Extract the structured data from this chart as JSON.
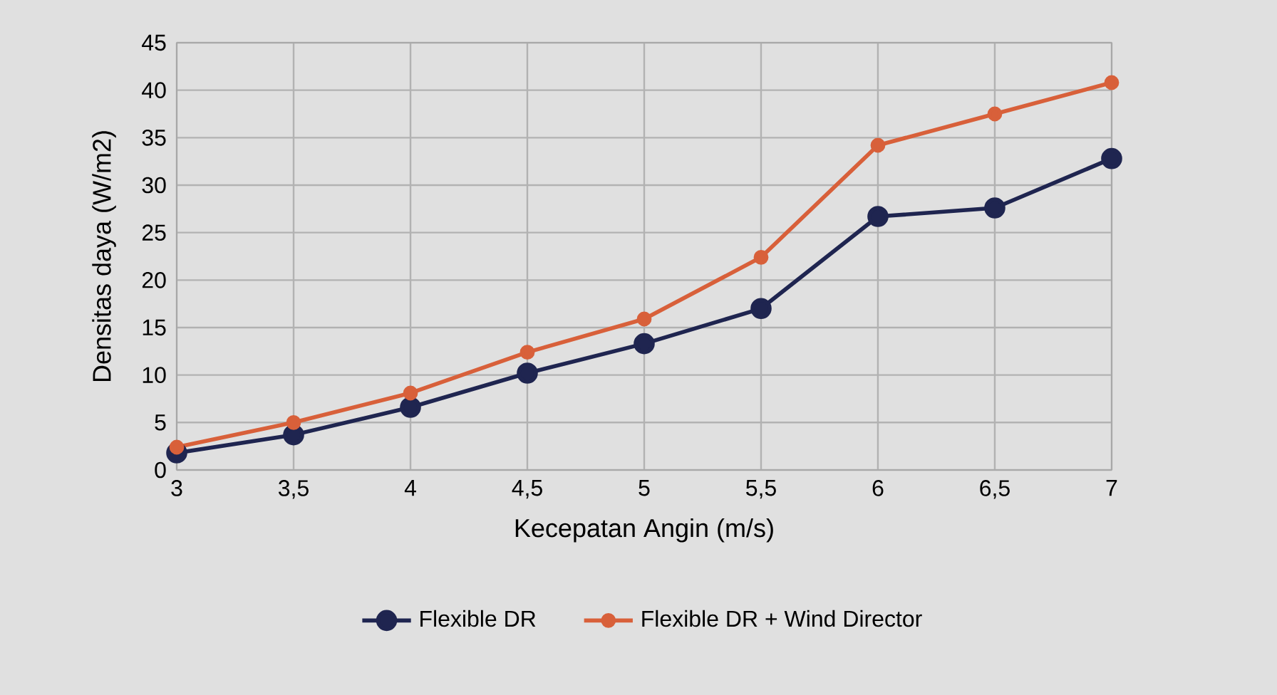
{
  "chart_data": {
    "type": "line",
    "xlabel": "Kecepatan Angin (m/s)",
    "ylabel": "Densitas daya (W/m2)",
    "x": [
      3,
      3.5,
      4,
      4.5,
      5,
      5.5,
      6,
      6.5,
      7
    ],
    "series": [
      {
        "name": "Flexible DR",
        "color": "#1f2550",
        "values": [
          1.8,
          3.7,
          6.6,
          10.2,
          13.3,
          17,
          26.7,
          27.6,
          32.8
        ]
      },
      {
        "name": "Flexible DR + Wind Director",
        "color": "#d8603a",
        "values": [
          2.4,
          5,
          8.1,
          12.4,
          15.9,
          22.4,
          34.2,
          37.5,
          40.8
        ]
      }
    ],
    "xlim": [
      3,
      7
    ],
    "ylim": [
      0,
      45
    ],
    "xticks": [
      3,
      {
        "value": 3.5,
        "label": "3,5"
      },
      4,
      {
        "value": 4.5,
        "label": "4,5"
      },
      5,
      {
        "value": 5.5,
        "label": "5,5"
      },
      6,
      {
        "value": 6.5,
        "label": "6,5"
      },
      7
    ],
    "yticks": [
      0,
      5,
      10,
      15,
      20,
      25,
      30,
      35,
      40,
      45
    ],
    "grid": true,
    "legend": "bottom",
    "marker": "circle",
    "line_style": "solid"
  }
}
